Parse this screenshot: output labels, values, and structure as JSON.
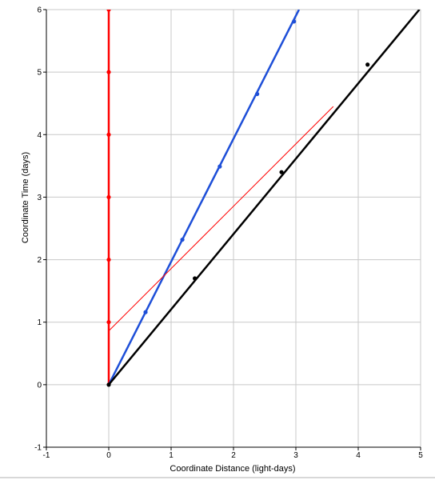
{
  "chart_data": {
    "type": "line",
    "title": "",
    "xlabel": "Coordinate Distance (light-days)",
    "ylabel": "Coordinate Time (days)",
    "xlim": [
      -1,
      5
    ],
    "ylim": [
      -1,
      6
    ],
    "grid": true,
    "legend": "none",
    "x_ticks": [
      "-1",
      "0",
      "1",
      "2",
      "3",
      "4",
      "5"
    ],
    "y_ticks": [
      "-1",
      "0",
      "1",
      "2",
      "3",
      "4",
      "5",
      "6"
    ],
    "series": [
      {
        "color": "#ff0000",
        "style": "thick",
        "x": [
          0,
          0
        ],
        "y": [
          0,
          6
        ],
        "markers": {
          "x": [
            0,
            0,
            0,
            0,
            0,
            0
          ],
          "y": [
            1,
            2,
            3,
            4,
            5,
            6
          ]
        }
      },
      {
        "color": "#1e4fd8",
        "style": "thick",
        "x": [
          0,
          3.05
        ],
        "y": [
          0,
          6
        ],
        "markers": {
          "x": [
            0.59,
            1.18,
            1.78,
            2.38,
            2.97
          ],
          "y": [
            1.16,
            2.32,
            3.49,
            4.65,
            5.81
          ]
        }
      },
      {
        "color": "#000000",
        "style": "thick",
        "x": [
          0,
          4.98
        ],
        "y": [
          0,
          6
        ],
        "markers": {
          "x": [
            0,
            1.38,
            2.77,
            4.15
          ],
          "y": [
            0,
            1.7,
            3.4,
            5.12
          ]
        }
      },
      {
        "color": "#ff0000",
        "style": "thin",
        "x": [
          0,
          3.6
        ],
        "y": [
          0.86,
          4.45
        ],
        "markers": {
          "x": [],
          "y": []
        }
      }
    ]
  }
}
